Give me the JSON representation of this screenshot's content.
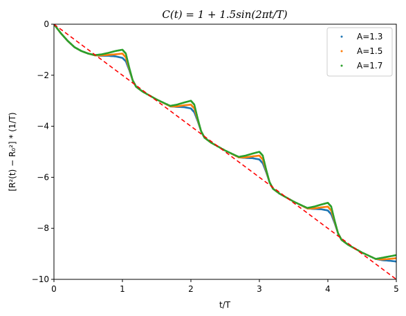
{
  "chart_data": {
    "type": "scatter",
    "title": "C(t) = 1 + 1.5sin(2πt/T)",
    "xlabel": "t/T",
    "ylabel": "[R²(t) − R₀²] * (1/T)",
    "xlim": [
      0,
      5
    ],
    "ylim": [
      -10,
      0
    ],
    "x_ticks": [
      "0",
      "1",
      "2",
      "3",
      "4",
      "5"
    ],
    "y_ticks": [
      "0",
      "−2",
      "−4",
      "−6",
      "−8",
      "−10"
    ],
    "grid": false,
    "legend_position": "top-right",
    "series": [
      {
        "name": "A=1.3",
        "color": "#1f77b4",
        "x": [
          0,
          0.1,
          0.2,
          0.3,
          0.4,
          0.5,
          0.6,
          0.7,
          0.8,
          0.9,
          1.0,
          1.05,
          1.1,
          1.15,
          1.2,
          1.3,
          1.5,
          1.7,
          1.8,
          1.9,
          2.0,
          2.05,
          2.1,
          2.15,
          2.2,
          2.3,
          2.5,
          2.7,
          2.8,
          2.9,
          3.0,
          3.05,
          3.1,
          3.15,
          3.2,
          3.3,
          3.5,
          3.7,
          3.8,
          3.9,
          4.0,
          4.05,
          4.1,
          4.15,
          4.2,
          4.3,
          4.5,
          4.7,
          4.8,
          4.9,
          5.0
        ],
        "y": [
          0,
          -0.35,
          -0.65,
          -0.9,
          -1.05,
          -1.15,
          -1.22,
          -1.24,
          -1.24,
          -1.26,
          -1.32,
          -1.45,
          -1.8,
          -2.2,
          -2.45,
          -2.65,
          -2.95,
          -3.22,
          -3.24,
          -3.25,
          -3.3,
          -3.45,
          -3.8,
          -4.2,
          -4.45,
          -4.65,
          -4.95,
          -5.22,
          -5.24,
          -5.25,
          -5.3,
          -5.45,
          -5.8,
          -6.2,
          -6.45,
          -6.65,
          -6.95,
          -7.22,
          -7.24,
          -7.25,
          -7.3,
          -7.45,
          -7.8,
          -8.2,
          -8.45,
          -8.65,
          -8.95,
          -9.2,
          -9.25,
          -9.27,
          -9.3
        ]
      },
      {
        "name": "A=1.5",
        "color": "#ff7f0e",
        "x": [
          0,
          0.1,
          0.2,
          0.3,
          0.4,
          0.5,
          0.6,
          0.7,
          0.8,
          0.9,
          1.0,
          1.05,
          1.1,
          1.15,
          1.2,
          1.3,
          1.5,
          1.7,
          1.8,
          1.9,
          2.0,
          2.05,
          2.1,
          2.15,
          2.2,
          2.3,
          2.5,
          2.7,
          2.8,
          2.9,
          3.0,
          3.05,
          3.1,
          3.15,
          3.2,
          3.3,
          3.5,
          3.7,
          3.8,
          3.9,
          4.0,
          4.05,
          4.1,
          4.15,
          4.2,
          4.3,
          4.5,
          4.7,
          4.8,
          4.9,
          5.0
        ],
        "y": [
          0,
          -0.35,
          -0.65,
          -0.9,
          -1.05,
          -1.15,
          -1.22,
          -1.22,
          -1.2,
          -1.18,
          -1.15,
          -1.3,
          -1.75,
          -2.2,
          -2.45,
          -2.65,
          -2.95,
          -3.22,
          -3.22,
          -3.18,
          -3.15,
          -3.3,
          -3.75,
          -4.2,
          -4.45,
          -4.65,
          -4.95,
          -5.22,
          -5.22,
          -5.18,
          -5.15,
          -5.3,
          -5.75,
          -6.2,
          -6.45,
          -6.65,
          -6.95,
          -7.22,
          -7.22,
          -7.18,
          -7.15,
          -7.3,
          -7.75,
          -8.2,
          -8.45,
          -8.65,
          -8.95,
          -9.2,
          -9.22,
          -9.2,
          -9.17
        ]
      },
      {
        "name": "A=1.7",
        "color": "#2ca02c",
        "x": [
          0,
          0.1,
          0.2,
          0.3,
          0.4,
          0.5,
          0.6,
          0.7,
          0.8,
          0.9,
          1.0,
          1.05,
          1.1,
          1.15,
          1.2,
          1.3,
          1.5,
          1.7,
          1.8,
          1.9,
          2.0,
          2.05,
          2.1,
          2.15,
          2.2,
          2.3,
          2.5,
          2.7,
          2.8,
          2.9,
          3.0,
          3.05,
          3.1,
          3.15,
          3.2,
          3.3,
          3.5,
          3.7,
          3.8,
          3.9,
          4.0,
          4.05,
          4.1,
          4.15,
          4.2,
          4.3,
          4.5,
          4.7,
          4.8,
          4.9,
          5.0
        ],
        "y": [
          0,
          -0.35,
          -0.65,
          -0.9,
          -1.05,
          -1.15,
          -1.21,
          -1.18,
          -1.12,
          -1.05,
          -1.0,
          -1.15,
          -1.7,
          -2.2,
          -2.45,
          -2.65,
          -2.95,
          -3.2,
          -3.15,
          -3.07,
          -3.0,
          -3.15,
          -3.7,
          -4.2,
          -4.45,
          -4.65,
          -4.95,
          -5.2,
          -5.15,
          -5.07,
          -5.0,
          -5.15,
          -5.7,
          -6.2,
          -6.45,
          -6.65,
          -6.95,
          -7.2,
          -7.15,
          -7.07,
          -7.0,
          -7.15,
          -7.7,
          -8.2,
          -8.45,
          -8.65,
          -8.95,
          -9.2,
          -9.15,
          -9.1,
          -9.05
        ]
      }
    ],
    "reference_line": {
      "style": "dashed",
      "color": "#ff0000",
      "x": [
        0,
        5
      ],
      "y": [
        0,
        -10
      ]
    }
  }
}
